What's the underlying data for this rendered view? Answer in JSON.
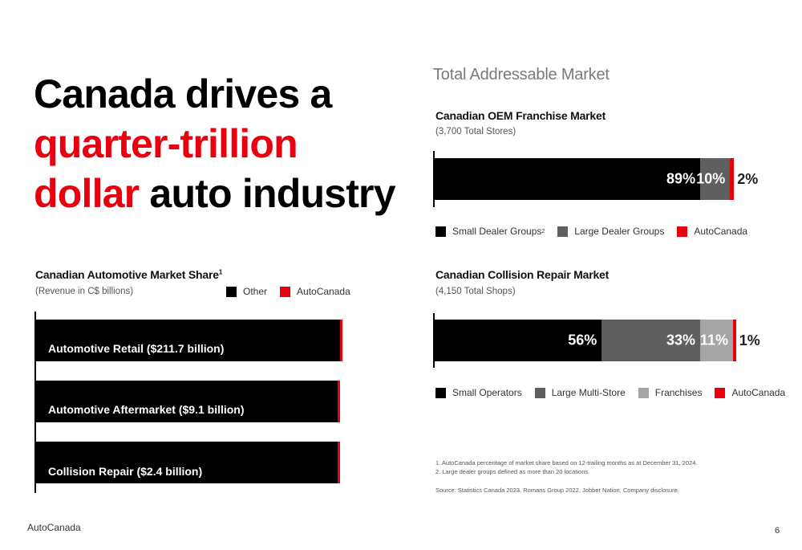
{
  "headline": {
    "line1": "Canada drives a",
    "line2": "quarter-trillion",
    "line3_red": "dollar",
    "line3_rest": " auto industry"
  },
  "tam_title": "Total Addressable Market",
  "colors": {
    "black": "#000000",
    "dark_gray": "#5f5f5f",
    "light_gray": "#a5a5a5",
    "red": "#e8000f"
  },
  "chart_data": [
    {
      "type": "bar",
      "title": "Canadian Automotive Market Share",
      "title_sup": "1",
      "subtitle": "(Revenue in C$ billions)",
      "orientation": "horizontal",
      "stacked": true,
      "categories": [
        "Automotive Retail ($211.7 billion)",
        "Automotive Aftermarket ($9.1 billion)",
        "Collision Repair ($2.4 billion)"
      ],
      "series": [
        {
          "name": "Other",
          "color": "#000000",
          "values": [
            99.9,
            99.2,
            99.1
          ]
        },
        {
          "name": "AutoCanada",
          "color": "#e8000f",
          "values": [
            0.1,
            0.8,
            0.9
          ]
        }
      ],
      "legend": [
        "Other",
        "AutoCanada"
      ]
    },
    {
      "type": "bar",
      "title": "Canadian OEM Franchise Market",
      "subtitle": "(3,700 Total Stores)",
      "orientation": "horizontal",
      "stacked": true,
      "series": [
        {
          "name": "Small Dealer Groups",
          "color": "#000000",
          "value": 89,
          "label": "89%"
        },
        {
          "name": "Large Dealer Groups",
          "color": "#5f5f5f",
          "value": 10,
          "label": "10%"
        },
        {
          "name": "AutoCanada",
          "color": "#e8000f",
          "value": 2,
          "label": "2%"
        }
      ],
      "legend": [
        "Small Dealer Groups",
        "Large Dealer Groups",
        "AutoCanada"
      ],
      "legend_sup": "2"
    },
    {
      "type": "bar",
      "title": "Canadian Collision Repair Market",
      "subtitle": "(4,150 Total Shops)",
      "orientation": "horizontal",
      "stacked": true,
      "series": [
        {
          "name": "Small Operators",
          "color": "#000000",
          "value": 56,
          "label": "56%"
        },
        {
          "name": "Large Multi-Store",
          "color": "#5f5f5f",
          "value": 33,
          "label": "33%"
        },
        {
          "name": "Franchises",
          "color": "#a5a5a5",
          "value": 11,
          "label": "11%"
        },
        {
          "name": "AutoCanada",
          "color": "#e8000f",
          "value": 1,
          "label": "1%"
        }
      ],
      "legend": [
        "Small Operators",
        "Large Multi-Store",
        "Franchises",
        "AutoCanada"
      ]
    }
  ],
  "footnotes": [
    "1. AutoCanada percentage of market share based on 12-trailing months as at December 31, 2024.",
    "2. Large dealer groups defined as more than 20 locations."
  ],
  "source": "Source: Statistics Canada 2023, Romans Group 2022, Jobber Nation, Company disclosure.",
  "brand": "AutoCanada",
  "page_number": "6"
}
